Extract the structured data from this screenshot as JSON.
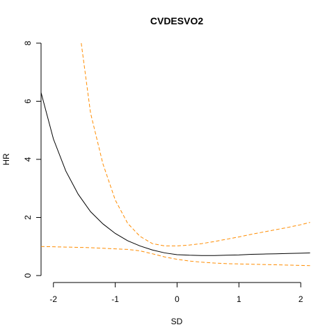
{
  "chart_data": {
    "type": "line",
    "title": "CVDESVO2",
    "xlabel": "SD",
    "ylabel": "HR",
    "xlim": [
      -2.2,
      2.2
    ],
    "ylim": [
      0,
      8
    ],
    "x_ticks": [
      -2,
      -1,
      0,
      1,
      2
    ],
    "y_ticks": [
      0,
      2,
      4,
      6,
      8
    ],
    "x_tick_labels": [
      "-2",
      "-1",
      "0",
      "1",
      "2"
    ],
    "y_tick_labels": [
      "0",
      "2",
      "4",
      "6",
      "8"
    ],
    "grid": false,
    "legend": "none",
    "series": [
      {
        "role": "estimate",
        "color": "#000000",
        "style": "solid",
        "x": [
          -2.2,
          -2.0,
          -1.8,
          -1.6,
          -1.4,
          -1.2,
          -1.0,
          -0.8,
          -0.6,
          -0.4,
          -0.2,
          0.0,
          0.2,
          0.4,
          0.6,
          0.8,
          1.0,
          1.2,
          1.4,
          1.6,
          1.8,
          2.0,
          2.15
        ],
        "y": [
          6.3,
          4.7,
          3.6,
          2.8,
          2.2,
          1.78,
          1.45,
          1.2,
          1.02,
          0.88,
          0.78,
          0.72,
          0.7,
          0.69,
          0.69,
          0.7,
          0.71,
          0.73,
          0.74,
          0.75,
          0.76,
          0.77,
          0.78
        ]
      },
      {
        "role": "upper-bound",
        "color": "#FF8C00",
        "style": "dashed",
        "x": [
          -1.55,
          -1.4,
          -1.2,
          -1.0,
          -0.8,
          -0.6,
          -0.4,
          -0.2,
          0.0,
          0.2,
          0.4,
          0.6,
          0.8,
          1.0,
          1.2,
          1.4,
          1.6,
          1.8,
          2.0,
          2.15
        ],
        "y": [
          8.0,
          5.6,
          3.85,
          2.6,
          1.8,
          1.35,
          1.1,
          1.02,
          1.02,
          1.05,
          1.1,
          1.17,
          1.25,
          1.33,
          1.42,
          1.5,
          1.58,
          1.66,
          1.75,
          1.83
        ]
      },
      {
        "role": "lower-bound",
        "color": "#FF8C00",
        "style": "dashed",
        "x": [
          -2.2,
          -2.0,
          -1.8,
          -1.6,
          -1.4,
          -1.2,
          -1.0,
          -0.8,
          -0.6,
          -0.4,
          -0.2,
          0.0,
          0.2,
          0.4,
          0.6,
          0.8,
          1.0,
          1.2,
          1.4,
          1.6,
          1.8,
          2.0,
          2.15
        ],
        "y": [
          1.0,
          0.99,
          0.98,
          0.97,
          0.96,
          0.94,
          0.92,
          0.9,
          0.85,
          0.75,
          0.64,
          0.56,
          0.5,
          0.46,
          0.43,
          0.41,
          0.4,
          0.39,
          0.38,
          0.37,
          0.36,
          0.35,
          0.34
        ]
      }
    ]
  }
}
